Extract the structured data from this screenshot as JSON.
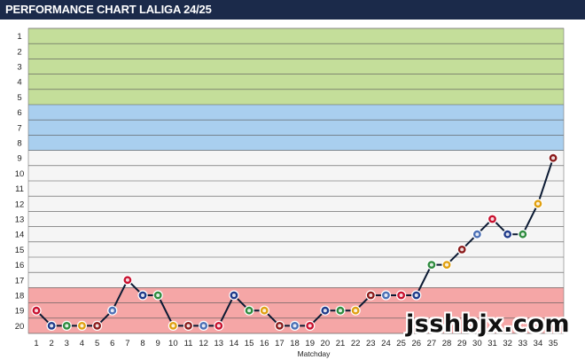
{
  "header": {
    "title": "PERFORMANCE CHART LALIGA 24/25"
  },
  "watermark": "jsshbjx.com",
  "zone_colors": {
    "top": "#c4de9a",
    "europe": "#a9cfef",
    "middle": "#f5f5f5",
    "relegation": "#f5a6a6"
  },
  "chart_data": {
    "type": "line",
    "title": "PERFORMANCE CHART LALIGA 24/25",
    "xlabel": "Matchday",
    "ylabel": "",
    "x": [
      1,
      2,
      3,
      4,
      5,
      6,
      7,
      8,
      9,
      10,
      11,
      12,
      13,
      14,
      15,
      16,
      17,
      18,
      19,
      20,
      21,
      22,
      23,
      24,
      25,
      26,
      27,
      28,
      29,
      30,
      31,
      32,
      33,
      34,
      35
    ],
    "y_ticks": [
      1,
      2,
      3,
      4,
      5,
      6,
      7,
      8,
      9,
      10,
      11,
      12,
      13,
      14,
      15,
      16,
      17,
      18,
      19,
      20
    ],
    "ylim": [
      20,
      1
    ],
    "y_inverted": true,
    "zones": [
      {
        "from": 1,
        "to": 5,
        "color": "#c4de9a"
      },
      {
        "from": 6,
        "to": 8,
        "color": "#a9cfef"
      },
      {
        "from": 9,
        "to": 17,
        "color": "#f5f5f5"
      },
      {
        "from": 18,
        "to": 20,
        "color": "#f5a6a6"
      }
    ],
    "series": [
      {
        "values": [
          19,
          20,
          20,
          20,
          20,
          19,
          17,
          18,
          18,
          20,
          20,
          20,
          20,
          18,
          19,
          19,
          20,
          20,
          20,
          19,
          19,
          19,
          18,
          18,
          18,
          18,
          16,
          16,
          15,
          14,
          13,
          14,
          14,
          12,
          9
        ],
        "color": "#0b1a33"
      }
    ],
    "grid": true
  }
}
